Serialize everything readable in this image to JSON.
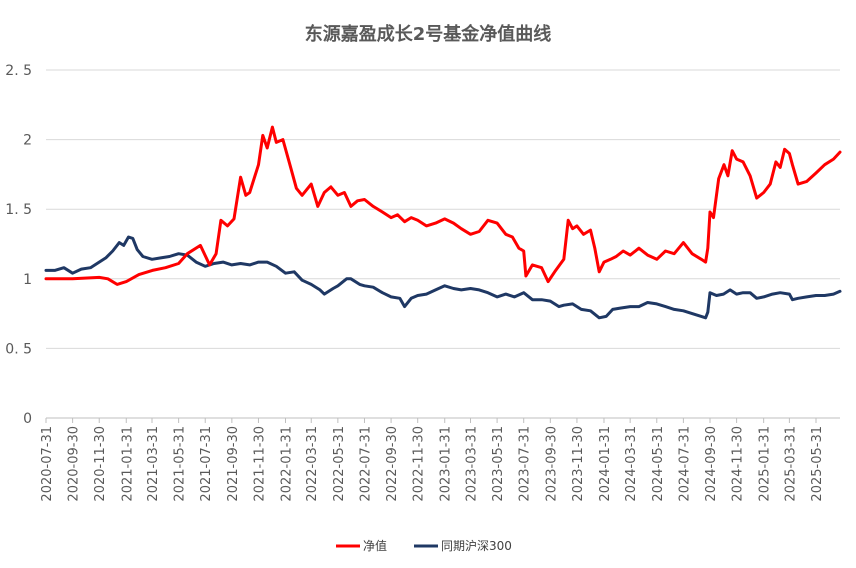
{
  "chart_data": {
    "type": "line",
    "title": "东源嘉盈成长2号基金净值曲线",
    "xlabel": "",
    "ylabel": "",
    "ylim": [
      0,
      2.5
    ],
    "yticks": [
      "0",
      "0. 5",
      "1",
      "1. 5",
      "2",
      "2. 5"
    ],
    "grid": true,
    "legend_position": "bottom",
    "x_tick_labels": [
      "2020-07-31",
      "2020-09-30",
      "2020-11-30",
      "2021-01-31",
      "2021-03-31",
      "2021-05-31",
      "2021-07-31",
      "2021-09-30",
      "2021-11-30",
      "2022-01-31",
      "2022-03-31",
      "2022-05-31",
      "2022-07-31",
      "2022-09-30",
      "2022-11-30",
      "2023-01-31",
      "2023-03-31",
      "2023-05-31",
      "2023-07-31",
      "2023-09-30",
      "2023-11-30",
      "2024-01-31",
      "2024-03-31",
      "2024-05-31",
      "2024-07-31",
      "2024-09-30",
      "2024-11-30",
      "2025-01-31",
      "2025-03-31",
      "2025-05-31"
    ],
    "x_range": [
      "2020-07-31",
      "2025-07-25"
    ],
    "series": [
      {
        "name": "净值",
        "color": "#ff0000",
        "points": [
          [
            "2020-07-31",
            1.0
          ],
          [
            "2020-09-30",
            1.0
          ],
          [
            "2020-11-30",
            1.01
          ],
          [
            "2020-12-20",
            1.0
          ],
          [
            "2021-01-10",
            0.96
          ],
          [
            "2021-01-31",
            0.98
          ],
          [
            "2021-03-01",
            1.03
          ],
          [
            "2021-04-01",
            1.06
          ],
          [
            "2021-05-01",
            1.08
          ],
          [
            "2021-05-31",
            1.11
          ],
          [
            "2021-06-20",
            1.18
          ],
          [
            "2021-07-20",
            1.24
          ],
          [
            "2021-08-10",
            1.1
          ],
          [
            "2021-08-25",
            1.18
          ],
          [
            "2021-09-05",
            1.42
          ],
          [
            "2021-09-20",
            1.38
          ],
          [
            "2021-10-05",
            1.43
          ],
          [
            "2021-10-20",
            1.73
          ],
          [
            "2021-11-01",
            1.6
          ],
          [
            "2021-11-10",
            1.62
          ],
          [
            "2021-11-30",
            1.82
          ],
          [
            "2021-12-10",
            2.03
          ],
          [
            "2021-12-20",
            1.94
          ],
          [
            "2022-01-01",
            2.09
          ],
          [
            "2022-01-10",
            1.98
          ],
          [
            "2022-01-25",
            2.0
          ],
          [
            "2022-02-10",
            1.82
          ],
          [
            "2022-02-25",
            1.65
          ],
          [
            "2022-03-10",
            1.6
          ],
          [
            "2022-03-31",
            1.68
          ],
          [
            "2022-04-15",
            1.52
          ],
          [
            "2022-04-30",
            1.62
          ],
          [
            "2022-05-15",
            1.66
          ],
          [
            "2022-05-31",
            1.6
          ],
          [
            "2022-06-15",
            1.62
          ],
          [
            "2022-06-30",
            1.52
          ],
          [
            "2022-07-15",
            1.56
          ],
          [
            "2022-07-31",
            1.57
          ],
          [
            "2022-08-20",
            1.52
          ],
          [
            "2022-09-10",
            1.48
          ],
          [
            "2022-09-30",
            1.44
          ],
          [
            "2022-10-15",
            1.46
          ],
          [
            "2022-10-31",
            1.41
          ],
          [
            "2022-11-15",
            1.44
          ],
          [
            "2022-11-30",
            1.42
          ],
          [
            "2022-12-20",
            1.38
          ],
          [
            "2023-01-10",
            1.4
          ],
          [
            "2023-01-31",
            1.43
          ],
          [
            "2023-02-20",
            1.4
          ],
          [
            "2023-03-10",
            1.36
          ],
          [
            "2023-03-31",
            1.32
          ],
          [
            "2023-04-20",
            1.34
          ],
          [
            "2023-05-10",
            1.42
          ],
          [
            "2023-05-31",
            1.4
          ],
          [
            "2023-06-20",
            1.32
          ],
          [
            "2023-07-05",
            1.3
          ],
          [
            "2023-07-20",
            1.22
          ],
          [
            "2023-07-31",
            1.2
          ],
          [
            "2023-08-05",
            1.02
          ],
          [
            "2023-08-20",
            1.1
          ],
          [
            "2023-09-10",
            1.08
          ],
          [
            "2023-09-25",
            0.98
          ],
          [
            "2023-10-10",
            1.05
          ],
          [
            "2023-10-31",
            1.14
          ],
          [
            "2023-11-10",
            1.42
          ],
          [
            "2023-11-20",
            1.36
          ],
          [
            "2023-11-30",
            1.38
          ],
          [
            "2023-12-15",
            1.32
          ],
          [
            "2023-12-31",
            1.35
          ],
          [
            "2024-01-10",
            1.22
          ],
          [
            "2024-01-20",
            1.05
          ],
          [
            "2024-01-31",
            1.12
          ],
          [
            "2024-02-15",
            1.14
          ],
          [
            "2024-02-28",
            1.16
          ],
          [
            "2024-03-15",
            1.2
          ],
          [
            "2024-03-31",
            1.17
          ],
          [
            "2024-04-20",
            1.22
          ],
          [
            "2024-05-10",
            1.17
          ],
          [
            "2024-05-31",
            1.14
          ],
          [
            "2024-06-20",
            1.2
          ],
          [
            "2024-07-10",
            1.18
          ],
          [
            "2024-07-31",
            1.26
          ],
          [
            "2024-08-20",
            1.18
          ],
          [
            "2024-09-10",
            1.14
          ],
          [
            "2024-09-20",
            1.12
          ],
          [
            "2024-09-25",
            1.22
          ],
          [
            "2024-09-30",
            1.48
          ],
          [
            "2024-10-08",
            1.44
          ],
          [
            "2024-10-20",
            1.72
          ],
          [
            "2024-11-01",
            1.82
          ],
          [
            "2024-11-10",
            1.74
          ],
          [
            "2024-11-20",
            1.92
          ],
          [
            "2024-11-30",
            1.86
          ],
          [
            "2024-12-15",
            1.84
          ],
          [
            "2024-12-31",
            1.74
          ],
          [
            "2025-01-15",
            1.58
          ],
          [
            "2025-01-31",
            1.62
          ],
          [
            "2025-02-15",
            1.68
          ],
          [
            "2025-02-28",
            1.84
          ],
          [
            "2025-03-10",
            1.8
          ],
          [
            "2025-03-20",
            1.93
          ],
          [
            "2025-03-31",
            1.9
          ],
          [
            "2025-04-07",
            1.82
          ],
          [
            "2025-04-20",
            1.68
          ],
          [
            "2025-05-10",
            1.7
          ],
          [
            "2025-05-31",
            1.76
          ],
          [
            "2025-06-20",
            1.82
          ],
          [
            "2025-07-10",
            1.86
          ],
          [
            "2025-07-25",
            1.91
          ]
        ]
      },
      {
        "name": "同期沪深300",
        "color": "#1f3864",
        "points": [
          [
            "2020-07-31",
            1.06
          ],
          [
            "2020-08-20",
            1.06
          ],
          [
            "2020-09-10",
            1.08
          ],
          [
            "2020-09-30",
            1.04
          ],
          [
            "2020-10-20",
            1.07
          ],
          [
            "2020-11-10",
            1.08
          ],
          [
            "2020-11-30",
            1.12
          ],
          [
            "2020-12-15",
            1.15
          ],
          [
            "2020-12-31",
            1.2
          ],
          [
            "2021-01-15",
            1.26
          ],
          [
            "2021-01-25",
            1.24
          ],
          [
            "2021-02-05",
            1.3
          ],
          [
            "2021-02-15",
            1.29
          ],
          [
            "2021-02-25",
            1.21
          ],
          [
            "2021-03-10",
            1.16
          ],
          [
            "2021-03-31",
            1.14
          ],
          [
            "2021-04-20",
            1.15
          ],
          [
            "2021-05-10",
            1.16
          ],
          [
            "2021-05-31",
            1.18
          ],
          [
            "2021-06-20",
            1.17
          ],
          [
            "2021-07-10",
            1.12
          ],
          [
            "2021-07-31",
            1.09
          ],
          [
            "2021-08-20",
            1.11
          ],
          [
            "2021-09-10",
            1.12
          ],
          [
            "2021-09-30",
            1.1
          ],
          [
            "2021-10-20",
            1.11
          ],
          [
            "2021-11-10",
            1.1
          ],
          [
            "2021-11-30",
            1.12
          ],
          [
            "2021-12-20",
            1.12
          ],
          [
            "2022-01-10",
            1.09
          ],
          [
            "2022-01-31",
            1.04
          ],
          [
            "2022-02-20",
            1.05
          ],
          [
            "2022-03-10",
            0.99
          ],
          [
            "2022-03-31",
            0.96
          ],
          [
            "2022-04-20",
            0.92
          ],
          [
            "2022-04-30",
            0.89
          ],
          [
            "2022-05-20",
            0.93
          ],
          [
            "2022-05-31",
            0.95
          ],
          [
            "2022-06-20",
            1.0
          ],
          [
            "2022-06-30",
            1.0
          ],
          [
            "2022-07-20",
            0.96
          ],
          [
            "2022-07-31",
            0.95
          ],
          [
            "2022-08-20",
            0.94
          ],
          [
            "2022-09-10",
            0.9
          ],
          [
            "2022-09-30",
            0.87
          ],
          [
            "2022-10-20",
            0.86
          ],
          [
            "2022-10-31",
            0.8
          ],
          [
            "2022-11-15",
            0.86
          ],
          [
            "2022-11-30",
            0.88
          ],
          [
            "2022-12-20",
            0.89
          ],
          [
            "2023-01-10",
            0.92
          ],
          [
            "2023-01-31",
            0.95
          ],
          [
            "2023-02-20",
            0.93
          ],
          [
            "2023-03-10",
            0.92
          ],
          [
            "2023-03-31",
            0.93
          ],
          [
            "2023-04-20",
            0.92
          ],
          [
            "2023-05-10",
            0.9
          ],
          [
            "2023-05-31",
            0.87
          ],
          [
            "2023-06-20",
            0.89
          ],
          [
            "2023-07-10",
            0.87
          ],
          [
            "2023-07-31",
            0.9
          ],
          [
            "2023-08-20",
            0.85
          ],
          [
            "2023-09-10",
            0.85
          ],
          [
            "2023-09-30",
            0.84
          ],
          [
            "2023-10-20",
            0.8
          ],
          [
            "2023-10-31",
            0.81
          ],
          [
            "2023-11-20",
            0.82
          ],
          [
            "2023-12-10",
            0.78
          ],
          [
            "2023-12-31",
            0.77
          ],
          [
            "2024-01-20",
            0.72
          ],
          [
            "2024-02-05",
            0.73
          ],
          [
            "2024-02-20",
            0.78
          ],
          [
            "2024-03-10",
            0.79
          ],
          [
            "2024-03-31",
            0.8
          ],
          [
            "2024-04-20",
            0.8
          ],
          [
            "2024-05-10",
            0.83
          ],
          [
            "2024-05-31",
            0.82
          ],
          [
            "2024-06-20",
            0.8
          ],
          [
            "2024-07-10",
            0.78
          ],
          [
            "2024-07-31",
            0.77
          ],
          [
            "2024-08-20",
            0.75
          ],
          [
            "2024-09-10",
            0.73
          ],
          [
            "2024-09-20",
            0.72
          ],
          [
            "2024-09-25",
            0.76
          ],
          [
            "2024-09-30",
            0.9
          ],
          [
            "2024-10-15",
            0.88
          ],
          [
            "2024-10-31",
            0.89
          ],
          [
            "2024-11-15",
            0.92
          ],
          [
            "2024-11-30",
            0.89
          ],
          [
            "2024-12-15",
            0.9
          ],
          [
            "2024-12-31",
            0.9
          ],
          [
            "2025-01-15",
            0.86
          ],
          [
            "2025-01-31",
            0.87
          ],
          [
            "2025-02-20",
            0.89
          ],
          [
            "2025-03-10",
            0.9
          ],
          [
            "2025-03-31",
            0.89
          ],
          [
            "2025-04-07",
            0.85
          ],
          [
            "2025-04-20",
            0.86
          ],
          [
            "2025-05-10",
            0.87
          ],
          [
            "2025-05-31",
            0.88
          ],
          [
            "2025-06-20",
            0.88
          ],
          [
            "2025-07-10",
            0.89
          ],
          [
            "2025-07-25",
            0.91
          ]
        ]
      }
    ]
  }
}
